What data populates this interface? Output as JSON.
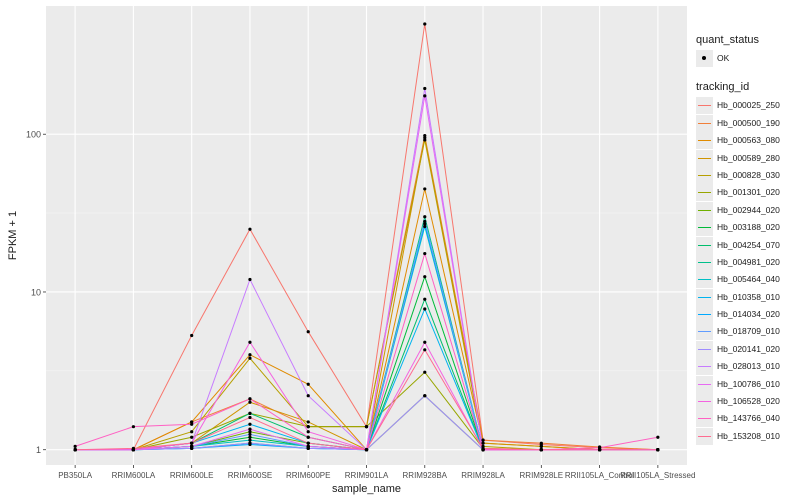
{
  "chart_data": {
    "type": "line",
    "xlabel": "sample_name",
    "ylabel": "FPKM + 1",
    "y_scale": "log10",
    "ylim": [
      0.8,
      650
    ],
    "y_ticks": [
      1,
      10,
      100
    ],
    "y_tick_labels": [
      "1",
      "10",
      "100"
    ],
    "grid": true,
    "panel_background": "#ebebeb",
    "legend_placement": "right",
    "categories": [
      "PB350LA",
      "RRIM600LA",
      "RRIM600LE",
      "RRIM600SE",
      "RRIM600PE",
      "RRIM901LA",
      "RRIM928BA",
      "RRIM928LA",
      "RRIM928LE",
      "RRII105LA_Control",
      "RRII105LA_Stressed"
    ],
    "legend_status": {
      "title": "quant_status",
      "label": "OK"
    },
    "legend_tracking": {
      "title": "tracking_id"
    },
    "series": [
      {
        "name": "Hb_000025_250",
        "color": "#F8766D",
        "values": [
          1,
          1,
          5.3,
          25,
          5.6,
          1.4,
          500,
          1.15,
          1.08,
          1.03,
          1
        ]
      },
      {
        "name": "Hb_000500_190",
        "color": "#F17F39",
        "values": [
          1,
          1,
          1.5,
          2.1,
          1.4,
          1.4,
          98,
          1.15,
          1.1,
          1.04,
          1
        ]
      },
      {
        "name": "Hb_000563_080",
        "color": "#E08B00",
        "values": [
          1,
          1,
          1.5,
          4.0,
          2.6,
          1,
          45,
          1.1,
          1.05,
          1,
          1
        ]
      },
      {
        "name": "Hb_000589_280",
        "color": "#D09400",
        "values": [
          1,
          1,
          1.1,
          2.0,
          1.5,
          1,
          95,
          1.1,
          1.05,
          1,
          1
        ]
      },
      {
        "name": "Hb_000828_030",
        "color": "#B79F00",
        "values": [
          1,
          1,
          1.3,
          3.8,
          1.4,
          1.4,
          92,
          1.05,
          1,
          1,
          1
        ]
      },
      {
        "name": "Hb_001301_020",
        "color": "#98A600",
        "values": [
          1,
          1,
          1.2,
          1.7,
          1.4,
          1.4,
          3.1,
          1.02,
          1,
          1,
          1
        ]
      },
      {
        "name": "Hb_002944_020",
        "color": "#6FB000",
        "values": [
          1,
          1,
          1.05,
          1.3,
          1.1,
          1,
          2.2,
          1,
          1,
          1,
          1
        ]
      },
      {
        "name": "Hb_003188_020",
        "color": "#00BA38",
        "values": [
          1,
          1,
          1.05,
          1.2,
          1.05,
          1,
          12.5,
          1,
          1,
          1,
          1
        ]
      },
      {
        "name": "Hb_004254_070",
        "color": "#00BE6C",
        "values": [
          1,
          1,
          1.1,
          1.7,
          1.2,
          1,
          9,
          1,
          1,
          1,
          1
        ]
      },
      {
        "name": "Hb_004981_020",
        "color": "#00C08B",
        "values": [
          1,
          1,
          1.02,
          1.1,
          1.02,
          1,
          30,
          1,
          1,
          1,
          1
        ]
      },
      {
        "name": "Hb_005464_040",
        "color": "#00BFC4",
        "values": [
          1,
          1,
          1.05,
          1.15,
          1.05,
          1,
          26,
          1,
          1,
          1,
          1
        ]
      },
      {
        "name": "Hb_010358_010",
        "color": "#00B4EF",
        "values": [
          1,
          1,
          1.1,
          1.45,
          1.1,
          1,
          7.8,
          1,
          1,
          1,
          1
        ]
      },
      {
        "name": "Hb_014034_020",
        "color": "#00A9FF",
        "values": [
          1,
          1,
          1.02,
          1.08,
          1.02,
          1,
          27,
          1,
          1,
          1,
          1
        ]
      },
      {
        "name": "Hb_018709_010",
        "color": "#619CFF",
        "values": [
          1,
          1,
          1.05,
          1.25,
          1.05,
          1,
          28,
          1,
          1,
          1,
          1
        ]
      },
      {
        "name": "Hb_020141_020",
        "color": "#9F8CFF",
        "values": [
          1,
          1,
          1.02,
          1.1,
          1.02,
          1,
          2.2,
          1,
          1,
          1,
          1
        ]
      },
      {
        "name": "Hb_028013_010",
        "color": "#C77CFF",
        "values": [
          1,
          1,
          1.1,
          12,
          2.2,
          1,
          195,
          1,
          1,
          1,
          1
        ]
      },
      {
        "name": "Hb_100786_010",
        "color": "#E76BF3",
        "values": [
          1,
          1,
          1.05,
          1.35,
          1.05,
          1,
          175,
          1,
          1,
          1,
          1
        ]
      },
      {
        "name": "Hb_106528_020",
        "color": "#F463E1",
        "values": [
          1,
          1,
          1.1,
          4.8,
          1.3,
          1,
          4.8,
          1,
          1,
          1,
          1
        ]
      },
      {
        "name": "Hb_143766_040",
        "color": "#FF61C3",
        "values": [
          1.05,
          1.4,
          1.45,
          2.1,
          1.2,
          1,
          17.5,
          1,
          1,
          1.03,
          1.2
        ]
      },
      {
        "name": "Hb_153208_010",
        "color": "#FF6C91",
        "values": [
          1,
          1.02,
          1.1,
          1.6,
          1.1,
          1,
          4.3,
          1.02,
          1,
          1,
          1
        ]
      }
    ]
  }
}
